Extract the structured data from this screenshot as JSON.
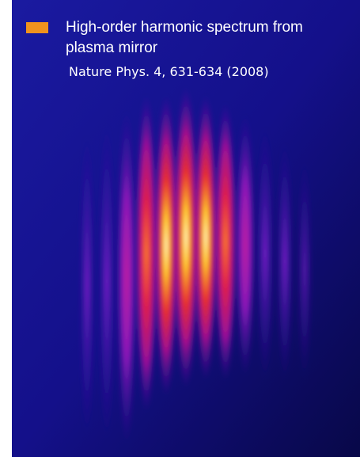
{
  "caption": {
    "lines": [
      "High-order harmonic spectrum  from",
      "plasma mirror"
    ],
    "citation": "Nature Phys. 4, 631-634 (2008)"
  }
}
